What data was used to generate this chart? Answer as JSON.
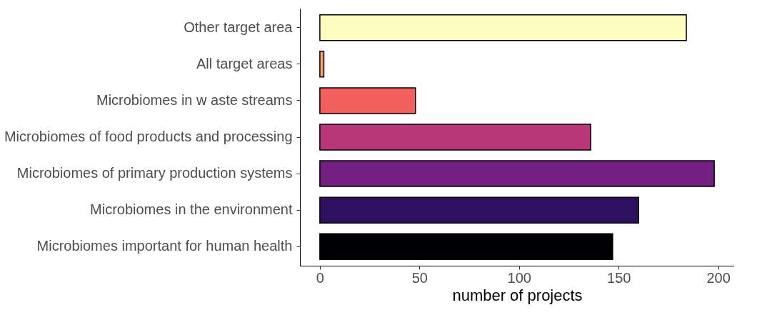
{
  "chart_data": {
    "type": "bar",
    "orientation": "horizontal",
    "xlabel": "number of projects",
    "categories": [
      "Other target area",
      "All target areas",
      "Microbiomes in w aste streams",
      "Microbiomes of food products and processing",
      "Microbiomes of primary production systems",
      "Microbiomes in the environment",
      "Microbiomes important for human health"
    ],
    "values": [
      184,
      2,
      48,
      136,
      198,
      160,
      147
    ],
    "colors": [
      "#fcfdbf",
      "#fd9f6c",
      "#f1605d",
      "#b73779",
      "#721f81",
      "#2d1160",
      "#000004"
    ],
    "xlim": [
      -10,
      208
    ],
    "xticks": [
      0,
      50,
      100,
      150,
      200
    ],
    "grid": false
  }
}
